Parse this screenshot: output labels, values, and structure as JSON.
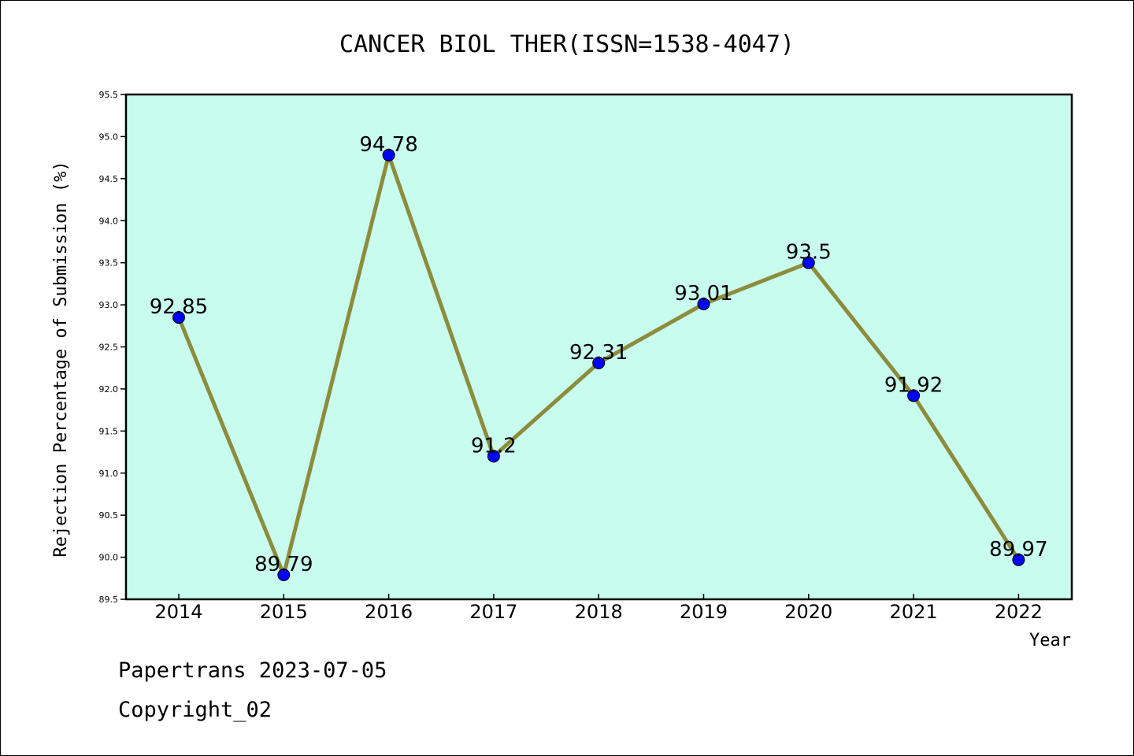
{
  "chart_data": {
    "type": "line",
    "title": "CANCER BIOL THER(ISSN=1538-4047)",
    "xlabel": "Year",
    "ylabel": "Rejection Percentage of Submission (%)",
    "categories": [
      "2014",
      "2015",
      "2016",
      "2017",
      "2018",
      "2019",
      "2020",
      "2021",
      "2022"
    ],
    "series": [
      {
        "values": [
          92.85,
          89.79,
          94.78,
          91.2,
          92.31,
          93.01,
          93.5,
          91.92,
          89.97
        ],
        "labels": [
          "92.85",
          "89.79",
          "94.78",
          "91.2",
          "92.31",
          "93.01",
          "93.5",
          "91.92",
          "89.97"
        ]
      }
    ],
    "ylim": [
      89.5,
      95.5
    ],
    "yticks": [
      "89.5",
      "90.0",
      "90.5",
      "91.0",
      "91.5",
      "92.0",
      "92.5",
      "93.0",
      "93.5",
      "94.0",
      "94.5",
      "95.0",
      "95.5"
    ],
    "grid": false,
    "colors": {
      "plot_background": "#c8fcee",
      "line": "#8c8c3c",
      "marker": "#0000ff"
    }
  },
  "footer": {
    "line1": "Papertrans 2023-07-05",
    "line2": "Copyright_02"
  }
}
